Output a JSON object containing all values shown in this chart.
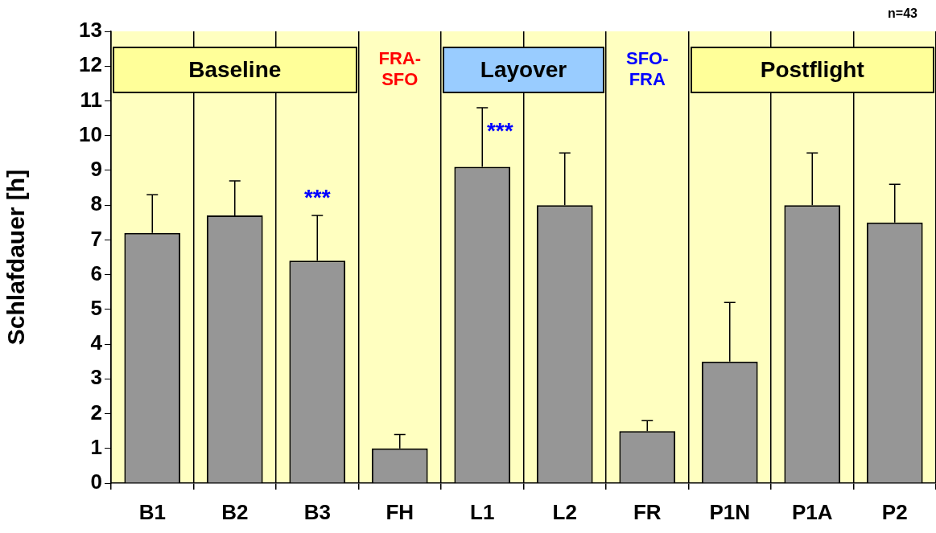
{
  "chart_data": {
    "type": "bar",
    "ylabel": "Schlafdauer [h]",
    "categories": [
      "B1",
      "B2",
      "B3",
      "FH",
      "L1",
      "L2",
      "FR",
      "P1N",
      "P1A",
      "P2"
    ],
    "values": [
      7.2,
      7.7,
      6.4,
      1.0,
      9.1,
      8.0,
      1.5,
      3.5,
      8.0,
      7.5
    ],
    "errors": [
      [
        7.2,
        8.3
      ],
      [
        7.7,
        8.7
      ],
      [
        6.4,
        7.7
      ],
      [
        1.0,
        1.4
      ],
      [
        9.1,
        10.8
      ],
      [
        8.0,
        9.5
      ],
      [
        1.5,
        1.8
      ],
      [
        3.5,
        5.2
      ],
      [
        8.0,
        9.5
      ],
      [
        7.5,
        8.6
      ]
    ],
    "color": "#969696",
    "ylim": [
      0,
      13
    ],
    "yticks": [
      0,
      1,
      2,
      3,
      4,
      5,
      6,
      7,
      8,
      9,
      10,
      11,
      12,
      13
    ],
    "grid": "x",
    "legend": false,
    "annotations": [
      "n=43",
      "Baseline",
      "FRA-SFO",
      "Layover",
      "SFO-FRA",
      "Postflight",
      {
        "text": "***",
        "x": "B3",
        "y": 7.7
      },
      {
        "text": "***",
        "x": "L1",
        "y": 10.8
      }
    ]
  }
}
